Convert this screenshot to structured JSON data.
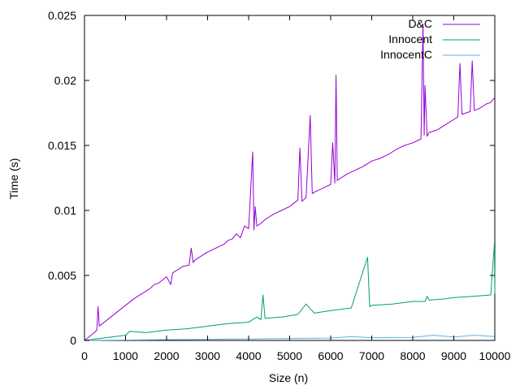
{
  "chart_data": {
    "type": "line",
    "title": "",
    "xlabel": "Size (n)",
    "ylabel": "Time (s)",
    "xlim": [
      0,
      10000
    ],
    "ylim": [
      0,
      0.025
    ],
    "xticks": [
      0,
      1000,
      2000,
      3000,
      4000,
      5000,
      6000,
      7000,
      8000,
      9000,
      10000
    ],
    "xtick_labels": [
      "0",
      "1000",
      "2000",
      "3000",
      "4000",
      "5000",
      "6000",
      "7000",
      "8000",
      "9000",
      "10000"
    ],
    "yticks": [
      0,
      0.005,
      0.01,
      0.015,
      0.02,
      0.025
    ],
    "ytick_labels": [
      "0",
      "0.005",
      "0.01",
      "0.015",
      "0.02",
      "0.025"
    ],
    "grid": false,
    "legend_position": "top-right",
    "series": [
      {
        "name": "D&C",
        "color": "#9400d3",
        "x": [
          0,
          200,
          300,
          330,
          360,
          400,
          600,
          800,
          1000,
          1200,
          1400,
          1600,
          1700,
          1800,
          2000,
          2100,
          2150,
          2200,
          2400,
          2550,
          2600,
          2650,
          2700,
          2800,
          3000,
          3200,
          3400,
          3500,
          3600,
          3700,
          3800,
          3900,
          4000,
          4100,
          4130,
          4160,
          4200,
          4300,
          4400,
          4500,
          4600,
          4800,
          5000,
          5200,
          5250,
          5300,
          5400,
          5500,
          5550,
          5600,
          5800,
          6000,
          6050,
          6100,
          6130,
          6160,
          6200,
          6400,
          6600,
          6800,
          6900,
          7000,
          7200,
          7400,
          7500,
          7600,
          7800,
          8000,
          8200,
          8250,
          8280,
          8300,
          8350,
          8400,
          8500,
          8600,
          8700,
          8800,
          9000,
          9100,
          9150,
          9200,
          9300,
          9400,
          9450,
          9500,
          9600,
          9700,
          9800,
          9900,
          9950,
          10000
        ],
        "y": [
          0,
          0.0005,
          0.0008,
          0.0026,
          0.0011,
          0.0012,
          0.0017,
          0.0022,
          0.0027,
          0.0032,
          0.0036,
          0.004,
          0.0043,
          0.0044,
          0.0049,
          0.0043,
          0.0052,
          0.0053,
          0.0057,
          0.0058,
          0.0071,
          0.006,
          0.0062,
          0.0064,
          0.0068,
          0.0071,
          0.0074,
          0.0077,
          0.0078,
          0.0082,
          0.0079,
          0.0088,
          0.0086,
          0.0145,
          0.0085,
          0.0103,
          0.0088,
          0.009,
          0.0093,
          0.0095,
          0.0097,
          0.01,
          0.0103,
          0.0108,
          0.0148,
          0.0107,
          0.011,
          0.0173,
          0.0113,
          0.0114,
          0.0117,
          0.012,
          0.0152,
          0.0121,
          0.0204,
          0.0123,
          0.0124,
          0.0128,
          0.0131,
          0.0134,
          0.0136,
          0.0138,
          0.014,
          0.0143,
          0.0145,
          0.0147,
          0.015,
          0.0152,
          0.0155,
          0.0243,
          0.0158,
          0.0196,
          0.0157,
          0.016,
          0.0161,
          0.0162,
          0.0164,
          0.0166,
          0.017,
          0.0172,
          0.0213,
          0.0174,
          0.0175,
          0.0176,
          0.0215,
          0.0177,
          0.0178,
          0.018,
          0.0182,
          0.0183,
          0.0185,
          0.0187
        ]
      },
      {
        "name": "Innocent",
        "color": "#009e73",
        "x": [
          0,
          500,
          1000,
          1100,
          1500,
          2000,
          2500,
          3000,
          3500,
          4000,
          4200,
          4300,
          4350,
          4400,
          4800,
          5000,
          5200,
          5400,
          5600,
          6000,
          6500,
          6900,
          6950,
          7000,
          7500,
          8000,
          8300,
          8350,
          8400,
          8800,
          9000,
          9500,
          9900,
          9990,
          10000
        ],
        "y": [
          0,
          0.0002,
          0.0004,
          0.0007,
          0.0006,
          0.0008,
          0.0009,
          0.0011,
          0.0013,
          0.0014,
          0.0018,
          0.0016,
          0.0035,
          0.0017,
          0.0018,
          0.0019,
          0.002,
          0.0028,
          0.0021,
          0.0023,
          0.0025,
          0.0064,
          0.0026,
          0.0027,
          0.0028,
          0.003,
          0.003,
          0.0034,
          0.0031,
          0.0032,
          0.0033,
          0.0034,
          0.0035,
          0.0075,
          0.0036
        ]
      },
      {
        "name": "InnocentC",
        "color": "#56b4e9",
        "x": [
          0,
          1000,
          2000,
          3000,
          4000,
          5000,
          6000,
          6500,
          7000,
          8000,
          8500,
          9000,
          9500,
          10000
        ],
        "y": [
          0,
          3e-05,
          6e-05,
          9e-05,
          0.00012,
          0.00015,
          0.00018,
          0.0003,
          0.00021,
          0.00024,
          0.0004,
          0.00027,
          0.0004,
          0.0003
        ]
      }
    ]
  }
}
